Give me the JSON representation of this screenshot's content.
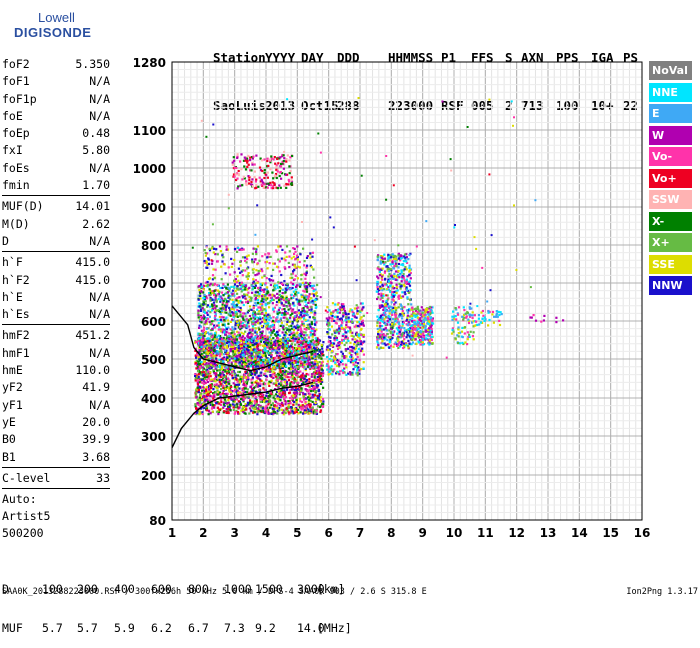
{
  "logo": {
    "top": "Lowell",
    "bottom": "DIGISONDE"
  },
  "header": {
    "line1": [
      "Station",
      "YYYY",
      "DAY",
      "DDD",
      "HHMMSS",
      "P1",
      "FFS",
      "S",
      "AXN",
      "PPS",
      "IGA",
      "PS"
    ],
    "line2": [
      "SaoLuis",
      "2013",
      "Oct15",
      "288",
      "223000",
      "RSF",
      "005",
      "2",
      "713",
      "100",
      "10+",
      "22"
    ]
  },
  "params_group1": [
    {
      "name": "foF2",
      "value": "5.350"
    },
    {
      "name": "foF1",
      "value": "N/A"
    },
    {
      "name": "foF1p",
      "value": "N/A"
    },
    {
      "name": "foE",
      "value": "N/A"
    },
    {
      "name": "foEp",
      "value": "0.48"
    },
    {
      "name": "fxI",
      "value": "5.80"
    },
    {
      "name": "foEs",
      "value": "N/A"
    },
    {
      "name": "fmin",
      "value": "1.70"
    }
  ],
  "params_group2": [
    {
      "name": "MUF(D)",
      "value": "14.01"
    },
    {
      "name": "M(D)",
      "value": "2.62"
    },
    {
      "name": "D",
      "value": "N/A"
    }
  ],
  "params_group3": [
    {
      "name": "h`F",
      "value": "415.0"
    },
    {
      "name": "h`F2",
      "value": "415.0"
    },
    {
      "name": "h`E",
      "value": "N/A"
    },
    {
      "name": "h`Es",
      "value": "N/A"
    }
  ],
  "params_group4": [
    {
      "name": "hmF2",
      "value": "451.2"
    },
    {
      "name": "hmF1",
      "value": "N/A"
    },
    {
      "name": "hmE",
      "value": "110.0"
    },
    {
      "name": "yF2",
      "value": "41.9"
    },
    {
      "name": "yF1",
      "value": "N/A"
    },
    {
      "name": "yE",
      "value": "20.0"
    },
    {
      "name": "B0",
      "value": "39.9"
    },
    {
      "name": "B1",
      "value": "3.68"
    }
  ],
  "clevel": {
    "name": "C-level",
    "value": "33"
  },
  "autoscale": [
    "Auto:",
    "Artist5",
    "500200"
  ],
  "legend": [
    {
      "label": "NoVal",
      "color": "#808080"
    },
    {
      "label": "NNE",
      "color": "#00e5ff"
    },
    {
      "label": "E",
      "color": "#3fa9f5"
    },
    {
      "label": "W",
      "color": "#b000b0"
    },
    {
      "label": "Vo-",
      "color": "#ff33aa"
    },
    {
      "label": "Vo+",
      "color": "#ee0022"
    },
    {
      "label": "SSW",
      "color": "#ffb3b3"
    },
    {
      "label": "X-",
      "color": "#008000"
    },
    {
      "label": "X+",
      "color": "#66bb44"
    },
    {
      "label": "SSE",
      "color": "#dddd00"
    },
    {
      "label": "NNW",
      "color": "#1a10cc"
    }
  ],
  "footer": {
    "d_label": "D",
    "d_values": [
      "100",
      "200",
      "400",
      "600",
      "800",
      "1000",
      "1500",
      "3000"
    ],
    "d_unit": "[km]",
    "muf_label": "MUF",
    "muf_values": [
      "5.7",
      "5.7",
      "5.9",
      "6.2",
      "6.7",
      "7.3",
      "9.2",
      "14.0"
    ],
    "muf_unit": "[MHz]",
    "source": "SAA0K_2013288223000.RSF / 300fx256h 50 kHz 5.0 km / DPS-4 SAA0K 903 / 2.6 S 315.8 E",
    "version": "Ion2Png 1.3.17"
  },
  "chart_data": {
    "type": "scatter",
    "xlabel": "",
    "ylabel": "",
    "xlim": [
      1,
      16
    ],
    "ylim": [
      80,
      1280
    ],
    "xticks": [
      1,
      2,
      3,
      4,
      5,
      6,
      7,
      8,
      9,
      10,
      11,
      12,
      13,
      14,
      15,
      16
    ],
    "yticks": [
      80,
      200,
      300,
      400,
      500,
      600,
      700,
      800,
      900,
      1000,
      1100,
      1280
    ],
    "y_scale": "piecewise",
    "grid": true,
    "echo_regions": [
      {
        "x": [
          1.7,
          5.8
        ],
        "y": [
          360,
          560
        ],
        "colors": [
          "W",
          "Vo-",
          "Vo+",
          "X+",
          "SSE",
          "NNW",
          "X-"
        ],
        "density": 2400
      },
      {
        "x": [
          1.8,
          5.6
        ],
        "y": [
          480,
          700
        ],
        "colors": [
          "NNW",
          "W",
          "Vo-",
          "NNE",
          "E",
          "X-",
          "X+",
          "SSE"
        ],
        "density": 1800
      },
      {
        "x": [
          2.0,
          5.5
        ],
        "y": [
          700,
          800
        ],
        "colors": [
          "NNW",
          "W",
          "SSE",
          "X+",
          "Vo-"
        ],
        "density": 260
      },
      {
        "x": [
          2.9,
          4.8
        ],
        "y": [
          950,
          1040
        ],
        "colors": [
          "Vo-",
          "Vo+",
          "SSW",
          "W",
          "X-"
        ],
        "density": 200
      },
      {
        "x": [
          5.9,
          7.1
        ],
        "y": [
          460,
          650
        ],
        "colors": [
          "Vo-",
          "W",
          "NNW",
          "SSE",
          "X+",
          "NNE"
        ],
        "density": 420
      },
      {
        "x": [
          7.5,
          8.6
        ],
        "y": [
          530,
          780
        ],
        "colors": [
          "NNE",
          "E",
          "W",
          "Vo-",
          "SSE",
          "X+",
          "NNW"
        ],
        "density": 620
      },
      {
        "x": [
          8.6,
          9.3
        ],
        "y": [
          540,
          640
        ],
        "colors": [
          "NNE",
          "E",
          "W",
          "Vo-",
          "SSE",
          "X+"
        ],
        "density": 280
      },
      {
        "x": [
          9.9,
          10.6
        ],
        "y": [
          540,
          640
        ],
        "colors": [
          "NNE",
          "E",
          "Vo-",
          "SSE",
          "X+"
        ],
        "density": 80
      },
      {
        "x": [
          10.6,
          11.5
        ],
        "y": [
          590,
          630
        ],
        "colors": [
          "NNE",
          "E",
          "Vo-",
          "SSE"
        ],
        "density": 40
      },
      {
        "x": [
          12.4,
          13.5
        ],
        "y": [
          600,
          620
        ],
        "colors": [
          "W",
          "Vo-"
        ],
        "density": 10
      }
    ],
    "trace_upper": {
      "x": [
        1.0,
        1.5,
        1.7,
        2.0,
        2.5,
        3.0,
        3.5,
        4.0,
        4.5,
        5.0,
        5.5
      ],
      "y": [
        640,
        590,
        530,
        500,
        490,
        480,
        470,
        480,
        500,
        510,
        520
      ]
    },
    "trace_lower": {
      "x": [
        1.0,
        1.3,
        1.7,
        2.0,
        2.5,
        3.0,
        3.5,
        4.0,
        4.5,
        5.0,
        5.5
      ],
      "y": [
        270,
        320,
        360,
        380,
        400,
        405,
        410,
        415,
        425,
        430,
        440
      ]
    }
  }
}
